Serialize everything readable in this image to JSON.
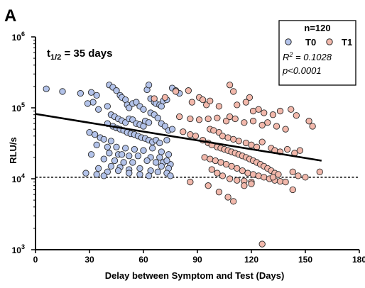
{
  "panel_label": "A",
  "chart_data": {
    "type": "scatter",
    "xlabel": "Delay between Symptom and Test (Days)",
    "ylabel": "RLU/s",
    "xlim": [
      0,
      180
    ],
    "ylim": [
      1000,
      1000000
    ],
    "y_scale": "log",
    "x_ticks": [
      "0",
      "30",
      "60",
      "90",
      "120",
      "150",
      "180"
    ],
    "y_tick_base": "10",
    "y_tick_exponents": [
      "3",
      "4",
      "5",
      "6"
    ],
    "grid": false,
    "legend_position": "top-right",
    "annotation": {
      "prefix": "t",
      "sub": "1/2",
      "suffix": " = 35 days"
    },
    "stats": {
      "n": "n=120",
      "r2_prefix": "R",
      "r2_exp": "2",
      "r2_value": " = 0.1028",
      "p": "p<0.0001"
    },
    "threshold_y": 10500,
    "regression": {
      "x": [
        0,
        159
      ],
      "y": [
        82000,
        18000
      ]
    },
    "colors": {
      "T0": "#b3c3ea",
      "T1": "#f2b8ab",
      "stroke": "#2a2a2a"
    },
    "series": [
      {
        "name": "T0",
        "points": [
          [
            6,
            185000
          ],
          [
            15,
            170000
          ],
          [
            25,
            160000
          ],
          [
            31,
            165000
          ],
          [
            34,
            150000
          ],
          [
            32,
            120000
          ],
          [
            29,
            115000
          ],
          [
            35,
            95000
          ],
          [
            40,
            105000
          ],
          [
            41,
            210000
          ],
          [
            43,
            195000
          ],
          [
            45,
            175000
          ],
          [
            47,
            150000
          ],
          [
            48,
            140000
          ],
          [
            50,
            130000
          ],
          [
            51,
            110000
          ],
          [
            52,
            100000
          ],
          [
            54,
            115000
          ],
          [
            56,
            120000
          ],
          [
            58,
            105000
          ],
          [
            60,
            95000
          ],
          [
            62,
            180000
          ],
          [
            63,
            210000
          ],
          [
            64,
            135000
          ],
          [
            66,
            120000
          ],
          [
            67,
            115000
          ],
          [
            69,
            110000
          ],
          [
            70,
            105000
          ],
          [
            71,
            125000
          ],
          [
            73,
            130000
          ],
          [
            76,
            190000
          ],
          [
            78,
            175000
          ],
          [
            80,
            160000
          ],
          [
            42,
            80000
          ],
          [
            44,
            75000
          ],
          [
            46,
            70000
          ],
          [
            48,
            66000
          ],
          [
            50,
            62000
          ],
          [
            52,
            70000
          ],
          [
            54,
            68000
          ],
          [
            56,
            60000
          ],
          [
            58,
            58000
          ],
          [
            60,
            55000
          ],
          [
            61,
            65000
          ],
          [
            63,
            62000
          ],
          [
            64,
            85000
          ],
          [
            66,
            80000
          ],
          [
            68,
            72000
          ],
          [
            70,
            60000
          ],
          [
            72,
            55000
          ],
          [
            74,
            48000
          ],
          [
            76,
            50000
          ],
          [
            40,
            60000
          ],
          [
            43,
            55000
          ],
          [
            45,
            52000
          ],
          [
            47,
            50000
          ],
          [
            49,
            48000
          ],
          [
            51,
            45000
          ],
          [
            53,
            43000
          ],
          [
            55,
            42000
          ],
          [
            57,
            40000
          ],
          [
            59,
            38000
          ],
          [
            61,
            37000
          ],
          [
            63,
            35000
          ],
          [
            65,
            33000
          ],
          [
            67,
            35000
          ],
          [
            69,
            32000
          ],
          [
            73,
            35000
          ],
          [
            30,
            45000
          ],
          [
            33,
            42000
          ],
          [
            36,
            38000
          ],
          [
            38,
            36000
          ],
          [
            42,
            34000
          ],
          [
            34,
            30000
          ],
          [
            40,
            28000
          ],
          [
            45,
            28000
          ],
          [
            50,
            27000
          ],
          [
            55,
            26000
          ],
          [
            60,
            25000
          ],
          [
            65,
            27000
          ],
          [
            70,
            24000
          ],
          [
            31,
            22000
          ],
          [
            41,
            23000
          ],
          [
            46,
            22000
          ],
          [
            48,
            22000
          ],
          [
            52,
            21000
          ],
          [
            57,
            21000
          ],
          [
            64,
            20000
          ],
          [
            69,
            20000
          ],
          [
            74,
            22000
          ],
          [
            38,
            19000
          ],
          [
            44,
            18000
          ],
          [
            49,
            17000
          ],
          [
            54,
            17000
          ],
          [
            62,
            18000
          ],
          [
            67,
            17000
          ],
          [
            71,
            17000
          ],
          [
            75,
            16000
          ],
          [
            35,
            14000
          ],
          [
            42,
            15000
          ],
          [
            47,
            14500
          ],
          [
            52,
            13500
          ],
          [
            58,
            14000
          ],
          [
            64,
            13000
          ],
          [
            70,
            15000
          ],
          [
            74,
            14000
          ],
          [
            28,
            12000
          ],
          [
            34,
            11500
          ],
          [
            40,
            12500
          ],
          [
            46,
            13000
          ],
          [
            52,
            12000
          ],
          [
            58,
            11500
          ],
          [
            63,
            11000
          ],
          [
            68,
            12500
          ],
          [
            73,
            12000
          ],
          [
            75,
            11000
          ],
          [
            38,
            11000
          ],
          [
            73,
            18000
          ]
        ]
      },
      {
        "name": "T1",
        "points": [
          [
            66,
            135000
          ],
          [
            72,
            140000
          ],
          [
            78,
            170000
          ],
          [
            85,
            175000
          ],
          [
            87,
            120000
          ],
          [
            91,
            140000
          ],
          [
            93,
            130000
          ],
          [
            95,
            110000
          ],
          [
            97,
            125000
          ],
          [
            102,
            105000
          ],
          [
            108,
            210000
          ],
          [
            110,
            170000
          ],
          [
            112,
            110000
          ],
          [
            117,
            120000
          ],
          [
            119,
            140000
          ],
          [
            121,
            90000
          ],
          [
            124,
            95000
          ],
          [
            127,
            85000
          ],
          [
            132,
            80000
          ],
          [
            136,
            90000
          ],
          [
            142,
            95000
          ],
          [
            145,
            78000
          ],
          [
            152,
            65000
          ],
          [
            154,
            55000
          ],
          [
            80,
            75000
          ],
          [
            86,
            70000
          ],
          [
            91,
            68000
          ],
          [
            96,
            70000
          ],
          [
            101,
            72000
          ],
          [
            106,
            65000
          ],
          [
            108,
            75000
          ],
          [
            111,
            70000
          ],
          [
            116,
            62000
          ],
          [
            121,
            65000
          ],
          [
            126,
            57000
          ],
          [
            129,
            62000
          ],
          [
            134,
            55000
          ],
          [
            139,
            50000
          ],
          [
            97,
            50000
          ],
          [
            99,
            48000
          ],
          [
            102,
            45000
          ],
          [
            104,
            40000
          ],
          [
            107,
            38000
          ],
          [
            110,
            36000
          ],
          [
            113,
            34000
          ],
          [
            117,
            32000
          ],
          [
            120,
            30000
          ],
          [
            123,
            28000
          ],
          [
            126,
            33000
          ],
          [
            131,
            27000
          ],
          [
            133,
            25000
          ],
          [
            136,
            24000
          ],
          [
            140,
            26000
          ],
          [
            144,
            23000
          ],
          [
            147,
            25000
          ],
          [
            82,
            46000
          ],
          [
            86,
            42000
          ],
          [
            89,
            40000
          ],
          [
            93,
            35000
          ],
          [
            96,
            32000
          ],
          [
            98,
            30000
          ],
          [
            101,
            28000
          ],
          [
            103,
            27000
          ],
          [
            105,
            26000
          ],
          [
            107,
            25000
          ],
          [
            109,
            24000
          ],
          [
            111,
            23000
          ],
          [
            113,
            22000
          ],
          [
            115,
            21000
          ],
          [
            117,
            20000
          ],
          [
            119,
            19000
          ],
          [
            121,
            18000
          ],
          [
            123,
            17000
          ],
          [
            125,
            16000
          ],
          [
            127,
            15000
          ],
          [
            129,
            14000
          ],
          [
            131,
            13000
          ],
          [
            133,
            12000
          ],
          [
            135,
            11500
          ],
          [
            94,
            20000
          ],
          [
            97,
            19000
          ],
          [
            100,
            18000
          ],
          [
            103,
            17000
          ],
          [
            106,
            16000
          ],
          [
            109,
            15000
          ],
          [
            112,
            14000
          ],
          [
            115,
            13000
          ],
          [
            118,
            12000
          ],
          [
            121,
            11500
          ],
          [
            124,
            11000
          ],
          [
            127,
            10500
          ],
          [
            130,
            10000
          ],
          [
            133,
            9500
          ],
          [
            136,
            9200
          ],
          [
            139,
            9000
          ],
          [
            143,
            12500
          ],
          [
            146,
            11000
          ],
          [
            150,
            10500
          ],
          [
            158,
            12500
          ],
          [
            98,
            13500
          ],
          [
            101,
            12000
          ],
          [
            104,
            11000
          ],
          [
            108,
            10000
          ],
          [
            112,
            9500
          ],
          [
            116,
            9300
          ],
          [
            120,
            9000
          ],
          [
            86,
            9000
          ],
          [
            96,
            8000
          ],
          [
            102,
            6500
          ],
          [
            107,
            5500
          ],
          [
            110,
            4800
          ],
          [
            116,
            8000
          ],
          [
            120,
            8500
          ],
          [
            143,
            7000
          ],
          [
            132,
            10500
          ],
          [
            126,
            1200
          ]
        ]
      }
    ]
  }
}
